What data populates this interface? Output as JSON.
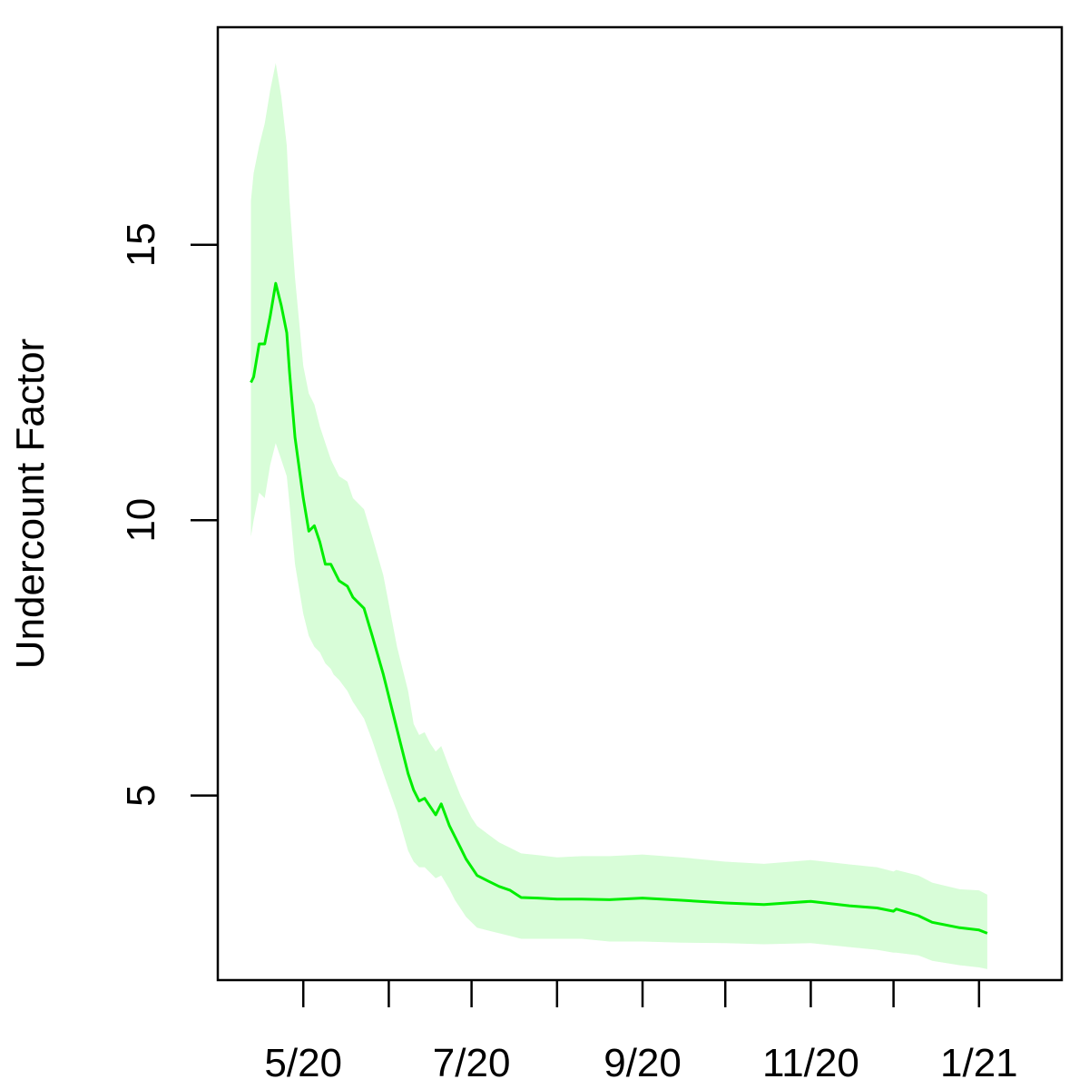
{
  "chart_data": {
    "type": "line",
    "title": "",
    "xlabel": "",
    "ylabel": "Undercount Factor",
    "y_ticks": [
      5,
      10,
      15
    ],
    "y_tick_labels": [
      "5",
      "10",
      "15"
    ],
    "ylim": [
      1.65,
      18.95
    ],
    "x_ticks": [
      "2020-05-01",
      "2020-06-01",
      "2020-07-01",
      "2020-08-01",
      "2020-09-01",
      "2020-10-01",
      "2020-11-01",
      "2020-12-01",
      "2021-01-01"
    ],
    "x_tick_labels": [
      "5/20",
      "",
      "7/20",
      "",
      "9/20",
      "",
      "11/20",
      "",
      "1/21"
    ],
    "xlim": [
      "2020-03-31",
      "2021-01-31"
    ],
    "grid": false,
    "legend": "none",
    "series": [
      {
        "color": "#00ee00",
        "band_color": "#d8fdd8",
        "x": [
          "2020-04-12",
          "2020-04-13",
          "2020-04-15",
          "2020-04-17",
          "2020-04-19",
          "2020-04-21",
          "2020-04-23",
          "2020-04-25",
          "2020-04-26",
          "2020-04-28",
          "2020-05-01",
          "2020-05-03",
          "2020-05-05",
          "2020-05-07",
          "2020-05-09",
          "2020-05-11",
          "2020-05-12",
          "2020-05-14",
          "2020-05-17",
          "2020-05-19",
          "2020-05-23",
          "2020-05-26",
          "2020-05-30",
          "2020-06-04",
          "2020-06-08",
          "2020-06-10",
          "2020-06-12",
          "2020-06-14",
          "2020-06-16",
          "2020-06-18",
          "2020-06-20",
          "2020-06-23",
          "2020-06-25",
          "2020-06-27",
          "2020-06-29",
          "2020-07-01",
          "2020-07-03",
          "2020-07-07",
          "2020-07-11",
          "2020-07-15",
          "2020-07-19",
          "2020-07-25",
          "2020-08-01",
          "2020-08-10",
          "2020-08-20",
          "2020-09-01",
          "2020-09-15",
          "2020-10-01",
          "2020-10-15",
          "2020-11-01",
          "2020-11-15",
          "2020-11-25",
          "2020-12-01",
          "2020-12-02",
          "2020-12-10",
          "2020-12-15",
          "2020-12-25",
          "2021-01-01",
          "2021-01-04"
        ],
        "y": [
          12.5,
          12.6,
          13.2,
          13.2,
          13.7,
          14.3,
          13.9,
          13.4,
          12.7,
          11.5,
          10.4,
          9.8,
          9.9,
          9.6,
          9.2,
          9.2,
          9.1,
          8.9,
          8.8,
          8.6,
          8.4,
          7.9,
          7.2,
          6.2,
          5.4,
          5.1,
          4.9,
          4.95,
          4.8,
          4.65,
          4.85,
          4.45,
          4.25,
          4.05,
          3.85,
          3.7,
          3.55,
          3.45,
          3.35,
          3.28,
          3.15,
          3.14,
          3.12,
          3.12,
          3.11,
          3.14,
          3.1,
          3.05,
          3.02,
          3.08,
          3.0,
          2.96,
          2.9,
          2.94,
          2.82,
          2.7,
          2.6,
          2.56,
          2.5
        ],
        "lower": [
          9.7,
          10.0,
          10.5,
          10.4,
          11.0,
          11.4,
          11.1,
          10.8,
          10.3,
          9.2,
          8.3,
          7.9,
          7.7,
          7.6,
          7.4,
          7.3,
          7.2,
          7.1,
          6.9,
          6.7,
          6.4,
          6.0,
          5.4,
          4.7,
          4.0,
          3.8,
          3.7,
          3.7,
          3.6,
          3.5,
          3.55,
          3.3,
          3.1,
          2.95,
          2.8,
          2.7,
          2.6,
          2.55,
          2.5,
          2.45,
          2.4,
          2.4,
          2.4,
          2.4,
          2.35,
          2.35,
          2.33,
          2.32,
          2.3,
          2.32,
          2.25,
          2.2,
          2.15,
          2.15,
          2.1,
          2.0,
          1.92,
          1.88,
          1.85
        ],
        "upper": [
          15.8,
          16.3,
          16.8,
          17.2,
          17.8,
          18.3,
          17.7,
          16.8,
          15.8,
          14.4,
          12.8,
          12.3,
          12.1,
          11.7,
          11.4,
          11.1,
          11.0,
          10.8,
          10.7,
          10.4,
          10.2,
          9.7,
          9.0,
          7.7,
          6.9,
          6.3,
          6.1,
          6.15,
          5.95,
          5.8,
          5.9,
          5.5,
          5.25,
          5.0,
          4.8,
          4.6,
          4.45,
          4.3,
          4.15,
          4.05,
          3.95,
          3.92,
          3.88,
          3.9,
          3.9,
          3.93,
          3.88,
          3.8,
          3.76,
          3.83,
          3.75,
          3.7,
          3.62,
          3.65,
          3.55,
          3.42,
          3.3,
          3.28,
          3.2
        ]
      }
    ]
  }
}
